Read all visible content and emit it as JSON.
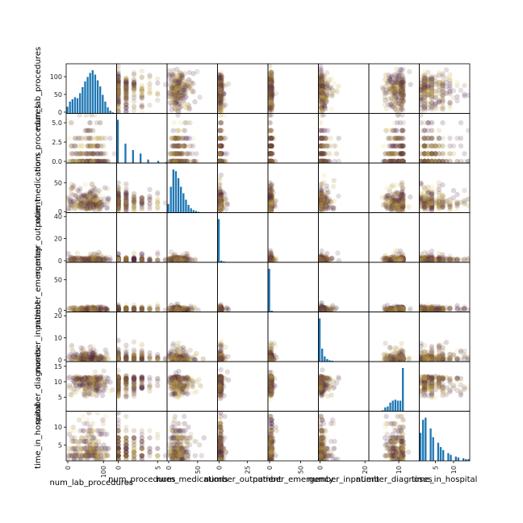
{
  "chart_data": {
    "type": "scatter",
    "kind": "scatter-matrix",
    "variables": [
      {
        "name": "num_lab_procedures",
        "range": [
          1,
          132
        ],
        "ticks": [
          0,
          50,
          100
        ],
        "y_ticks": [
          0,
          50,
          100
        ],
        "x_tick_labels": [
          "0",
          "100"
        ],
        "x_tick_values": [
          0,
          100
        ],
        "hist": [
          20,
          35,
          42,
          48,
          45,
          60,
          78,
          95,
          108,
          120,
          128,
          115,
          98,
          80,
          55,
          35,
          18,
          8,
          3,
          1
        ]
      },
      {
        "name": "num_procedures",
        "range": [
          0,
          6
        ],
        "ticks": [
          0,
          2,
          4,
          6
        ],
        "y_ticks": [
          0.0,
          2.5,
          5.0
        ],
        "y_tick_labels": [
          "0.0",
          "2.5",
          "5.0"
        ],
        "x_tick_labels": [
          "0",
          "5"
        ],
        "x_tick_values": [
          0,
          5
        ],
        "hist": [
          100,
          0,
          0,
          45,
          0,
          0,
          30,
          0,
          0,
          22,
          0,
          0,
          8,
          0,
          0,
          0,
          5,
          0,
          0,
          2
        ]
      },
      {
        "name": "num_medications",
        "range": [
          1,
          81
        ],
        "ticks": [
          0,
          50
        ],
        "y_ticks": [
          0,
          50
        ],
        "x_tick_labels": [
          "0",
          "50"
        ],
        "x_tick_values": [
          0,
          50
        ],
        "hist": [
          20,
          60,
          100,
          96,
          80,
          60,
          45,
          30,
          18,
          10,
          6,
          4,
          2,
          1,
          1,
          0,
          0,
          0,
          0,
          0
        ]
      },
      {
        "name": "number_outpatient",
        "range": [
          0,
          42
        ],
        "ticks": [
          0,
          20,
          40
        ],
        "y_ticks": [
          0,
          20,
          40
        ],
        "x_tick_labels": [
          "0",
          "25"
        ],
        "x_tick_values": [
          0,
          25
        ],
        "hist": [
          100,
          4,
          2,
          1,
          0,
          0,
          0,
          0,
          0,
          0,
          0,
          0,
          0,
          0,
          0,
          0,
          0,
          0,
          0,
          0
        ]
      },
      {
        "name": "number_emergency",
        "range": [
          0,
          76
        ],
        "ticks": [
          0,
          50
        ],
        "y_ticks": [
          0,
          50
        ],
        "x_tick_labels": [
          "0",
          "50"
        ],
        "x_tick_values": [
          0,
          50
        ],
        "hist": [
          100,
          3,
          1,
          0,
          0,
          0,
          0,
          0,
          0,
          0,
          0,
          0,
          0,
          0,
          0,
          0,
          0,
          0,
          0,
          0
        ]
      },
      {
        "name": "number_inpatient",
        "range": [
          0,
          21
        ],
        "ticks": [
          0,
          10,
          20
        ],
        "y_ticks": [
          0,
          10,
          20
        ],
        "x_tick_labels": [
          "0",
          "20"
        ],
        "x_tick_values": [
          0,
          20
        ],
        "hist": [
          100,
          30,
          12,
          6,
          3,
          2,
          1,
          1,
          0,
          0,
          0,
          0,
          0,
          0,
          0,
          0,
          0,
          0,
          0,
          0
        ]
      },
      {
        "name": "number_diagnoses",
        "range": [
          1,
          16
        ],
        "ticks": [
          5,
          10,
          15
        ],
        "y_ticks": [
          5,
          10,
          15
        ],
        "x_tick_labels": [
          "10"
        ],
        "x_tick_values": [
          10
        ],
        "hist": [
          0,
          0,
          0,
          0,
          0,
          2,
          8,
          10,
          18,
          22,
          24,
          22,
          22,
          90,
          0,
          0,
          1,
          0,
          0,
          0
        ]
      },
      {
        "name": "time_in_hospital",
        "range": [
          1,
          14
        ],
        "ticks": [
          5,
          10
        ],
        "y_ticks": [
          5,
          10
        ],
        "x_tick_labels": [
          "5",
          "10"
        ],
        "x_tick_values": [
          5,
          10
        ],
        "hist": [
          65,
          95,
          100,
          0,
          75,
          55,
          0,
          42,
          32,
          25,
          0,
          18,
          14,
          0,
          10,
          8,
          0,
          6,
          4,
          4
        ]
      }
    ],
    "diagonal": "histogram",
    "offdiagonal": "scatter",
    "point_colors": [
      "#3b0f4f",
      "#55264f",
      "#6e4a3a",
      "#8a6a2c",
      "#b39a39",
      "#e8d56b"
    ],
    "hist_color": "#1f77b4"
  }
}
